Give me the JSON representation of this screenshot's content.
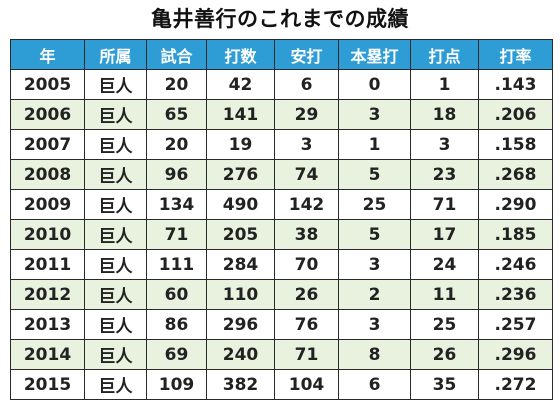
{
  "title": "亀井善行のこれまでの成績",
  "columns": [
    "年",
    "所属",
    "試合",
    "打数",
    "安打",
    "本塁打",
    "打点",
    "打率"
  ],
  "rows": [
    [
      "2005",
      "巨人",
      "20",
      "42",
      "6",
      "0",
      "1",
      ".143"
    ],
    [
      "2006",
      "巨人",
      "65",
      "141",
      "29",
      "3",
      "18",
      ".206"
    ],
    [
      "2007",
      "巨人",
      "20",
      "19",
      "3",
      "1",
      "3",
      ".158"
    ],
    [
      "2008",
      "巨人",
      "96",
      "276",
      "74",
      "5",
      "23",
      ".268"
    ],
    [
      "2009",
      "巨人",
      "134",
      "490",
      "142",
      "25",
      "71",
      ".290"
    ],
    [
      "2010",
      "巨人",
      "71",
      "205",
      "38",
      "5",
      "17",
      ".185"
    ],
    [
      "2011",
      "巨人",
      "111",
      "284",
      "70",
      "3",
      "24",
      ".246"
    ],
    [
      "2012",
      "巨人",
      "60",
      "110",
      "26",
      "2",
      "11",
      ".236"
    ],
    [
      "2013",
      "巨人",
      "86",
      "296",
      "76",
      "3",
      "25",
      ".257"
    ],
    [
      "2014",
      "巨人",
      "69",
      "240",
      "71",
      "8",
      "26",
      ".296"
    ],
    [
      "2015",
      "巨人",
      "109",
      "382",
      "104",
      "6",
      "35",
      ".272"
    ]
  ],
  "colors": {
    "header_bg": "#2e9cd5",
    "header_text": "#ffffff",
    "stripe_bg": "#e8f2de",
    "border": "#2a2a2a"
  }
}
